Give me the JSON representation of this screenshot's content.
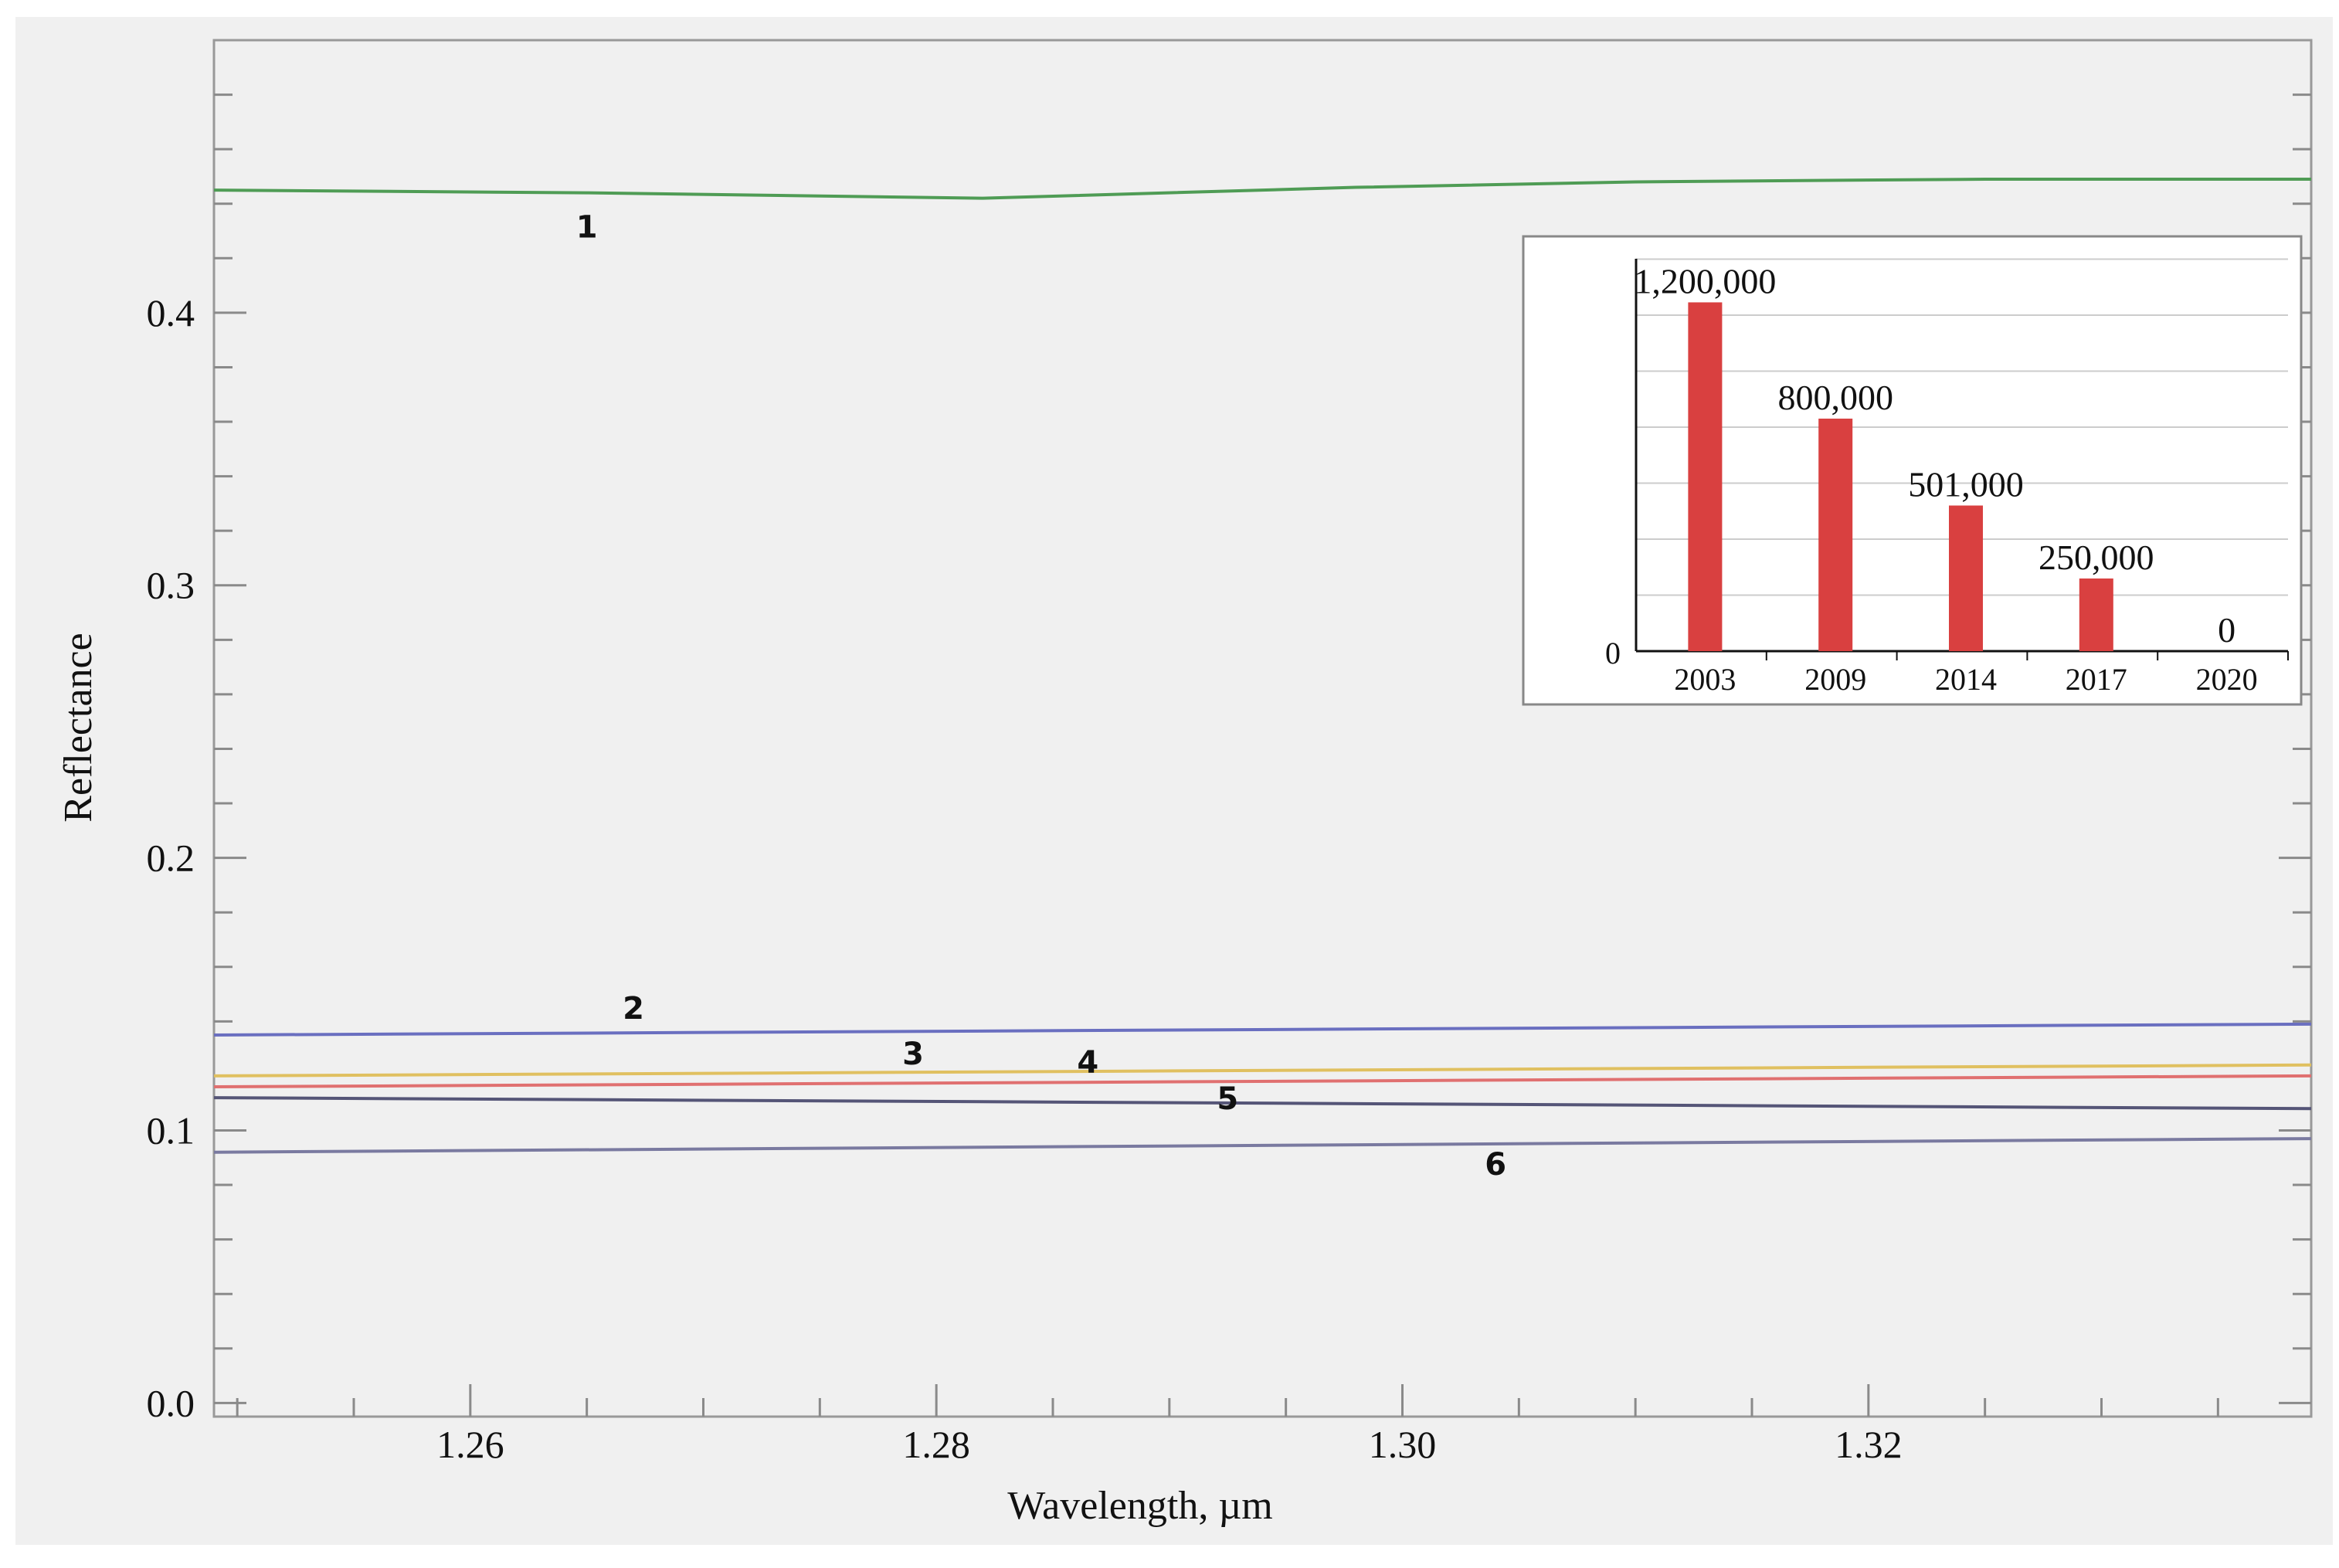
{
  "colors": {
    "plot_background": "#f0f0f0",
    "frame": "#999999",
    "inset_bar": "#d94040"
  },
  "chart_data": [
    {
      "type": "line",
      "title": "",
      "xlabel": "Wavelength, µm",
      "ylabel": "Reflectance",
      "xlim": [
        1.249,
        1.339
      ],
      "ylim": [
        -0.005,
        0.5
      ],
      "x_ticks": [
        1.26,
        1.28,
        1.3,
        1.32
      ],
      "x_tick_labels": [
        "1.26",
        "1.28",
        "1.30",
        "1.32"
      ],
      "y_ticks": [
        0.0,
        0.1,
        0.2,
        0.3,
        0.4
      ],
      "y_tick_labels": [
        "0.0",
        "0.1",
        "0.2",
        "0.3",
        "0.4"
      ],
      "grid": false,
      "legend": "none",
      "series": [
        {
          "label": "1",
          "color": "#4f9c55",
          "x": [
            1.249,
            1.265,
            1.282,
            1.298,
            1.31,
            1.325,
            1.339
          ],
          "y": [
            0.445,
            0.444,
            0.442,
            0.446,
            0.448,
            0.449,
            0.449
          ]
        },
        {
          "label": "2",
          "color": "#6a6fc0",
          "x": [
            1.249,
            1.339
          ],
          "y": [
            0.135,
            0.139
          ]
        },
        {
          "label": "3",
          "color": "#e0c060",
          "x": [
            1.249,
            1.339
          ],
          "y": [
            0.12,
            0.124
          ]
        },
        {
          "label": "4",
          "color": "#e07070",
          "x": [
            1.249,
            1.339
          ],
          "y": [
            0.116,
            0.12
          ]
        },
        {
          "label": "5",
          "color": "#555577",
          "x": [
            1.249,
            1.339
          ],
          "y": [
            0.112,
            0.108
          ]
        },
        {
          "label": "6",
          "color": "#7a7aa0",
          "x": [
            1.249,
            1.339
          ],
          "y": [
            0.092,
            0.097
          ]
        }
      ]
    },
    {
      "type": "bar",
      "title": "",
      "xlabel": "",
      "ylabel": "",
      "categories": [
        "2003",
        "2009",
        "2014",
        "2017",
        "2020"
      ],
      "values": [
        1200000,
        800000,
        501000,
        250000,
        0
      ],
      "value_labels": [
        "1,200,000",
        "800,000",
        "501,000",
        "250,000",
        "0"
      ],
      "ylim": [
        0,
        1350000
      ],
      "y_tick_labels": [
        "0"
      ],
      "grid": true
    }
  ]
}
